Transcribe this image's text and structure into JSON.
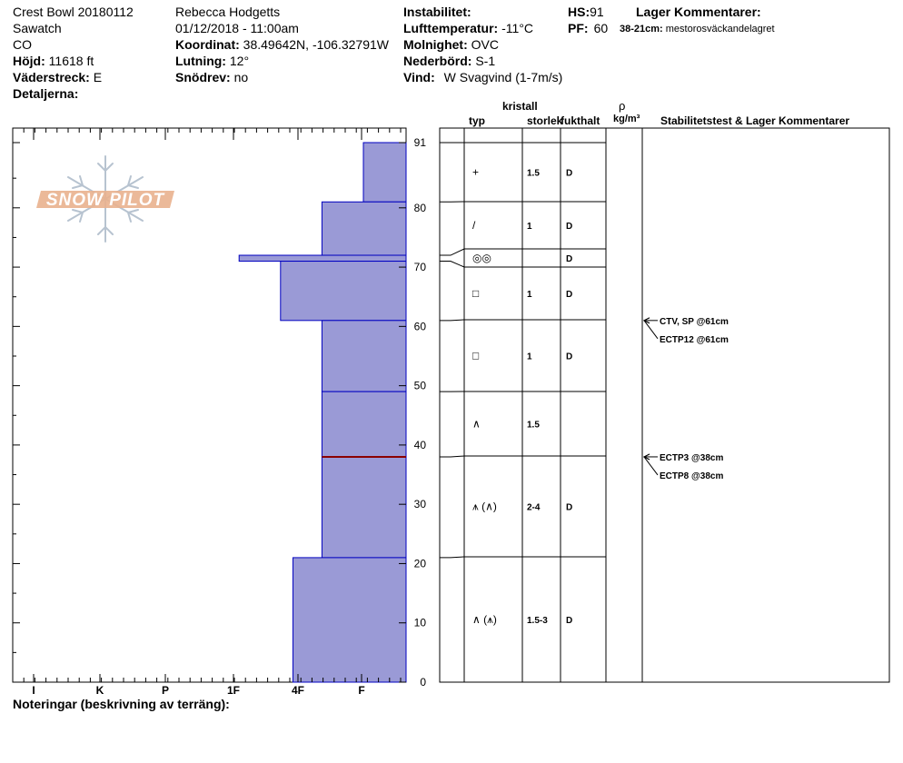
{
  "header": {
    "col1": {
      "title": "Crest Bowl 20180112",
      "range": "Sawatch",
      "state": "CO",
      "elevation_label": "Höjd:",
      "elevation_value": "11618 ft",
      "aspect_label": "Väderstreck:",
      "aspect_value": "E",
      "details_label": "Detaljerna:"
    },
    "col2": {
      "observer": "Rebecca Hodgetts",
      "datetime": "01/12/2018 - 11:00am",
      "coord_label": "Koordinat:",
      "coord_value": "38.49642N, -106.32791W",
      "slope_label": "Lutning:",
      "slope_value": "12°",
      "drift_label": "Snödrev:",
      "drift_value": "no"
    },
    "col3": {
      "instability_label": "Instabilitet:",
      "airtemp_label": "Lufttemperatur:",
      "airtemp_value": "-11°C",
      "sky_label": "Molnighet:",
      "sky_value": "OVC",
      "precip_label": "Nederbörd:",
      "precip_value": "S-1",
      "wind_label": "Vind:",
      "wind_value": "W Svagvind (1-7m/s)"
    },
    "col4": {
      "hs_label": "HS:",
      "hs_value": "91",
      "pf_label": "PF:",
      "pf_value": "60",
      "layer_comments_label": "Lager Kommentarer:",
      "layer_comment_range": "38-21cm:",
      "layer_comment_text": "mestorosväckandelagret"
    }
  },
  "footer": {
    "notes_label": "Noteringar (beskrivning av terräng):"
  },
  "logo": {
    "text": "SNOW PILOT"
  },
  "table_headers": {
    "type": "typ",
    "crystal": "kristall",
    "size": "storlek",
    "moisture": "fukthalt",
    "rho": "ρ",
    "density_unit": "kg/m³",
    "stability": "Stabilitetstest & Lager Kommentarer"
  },
  "colors": {
    "bar_fill": "#9a9ad6",
    "bar_edge": "#0000c0",
    "weak_layer": "#8b0000"
  },
  "chart_data": {
    "type": "bar",
    "orientation": "horizontal",
    "y_axis": {
      "min": 0,
      "max": 91,
      "ticks": [
        0,
        10,
        20,
        30,
        40,
        50,
        60,
        70,
        80,
        91
      ]
    },
    "x_axis": {
      "categories": [
        "I",
        "K",
        "P",
        "1F",
        "4F",
        "F"
      ]
    },
    "hand_hardness_scale": {
      "F": 1,
      "4F": 2,
      "1F": 3,
      "P": 4,
      "K": 5,
      "I": 6
    },
    "layers": [
      {
        "top": 91,
        "bottom": 81,
        "hardness": "F",
        "hardness_index": 1,
        "grain_type": "+",
        "size": "1.5",
        "moisture": "D"
      },
      {
        "top": 81,
        "bottom": 72,
        "hardness": "4F",
        "hardness_index": 2,
        "grain_type": "/",
        "size": "1",
        "moisture": "D"
      },
      {
        "top": 72,
        "bottom": 71,
        "hardness": "P",
        "hardness_index": 4,
        "grain_type": "◎◎",
        "size": "",
        "moisture": "D"
      },
      {
        "top": 71,
        "bottom": 61,
        "hardness": "1F",
        "hardness_index": 3,
        "grain_type": "□",
        "size": "1",
        "moisture": "D"
      },
      {
        "top": 61,
        "bottom": 49,
        "hardness": "4F",
        "hardness_index": 2,
        "grain_type": "□",
        "size": "1",
        "moisture": "D"
      },
      {
        "top": 49,
        "bottom": 38,
        "hardness": "4F",
        "hardness_index": 2,
        "grain_type": "∧",
        "size": "1.5",
        "moisture": ""
      },
      {
        "top": 38,
        "bottom": 21,
        "hardness": "4F",
        "hardness_index": 2,
        "grain_type": "⩚ (∧)",
        "size": "2-4",
        "moisture": "D"
      },
      {
        "top": 21,
        "bottom": 0,
        "hardness": "1F-4F",
        "hardness_index": 2.7,
        "grain_type": "∧ (⩚)",
        "size": "1.5-3",
        "moisture": "D"
      }
    ],
    "weak_layer_depth": 38,
    "stability_tests": [
      {
        "text": "CTV, SP @61cm",
        "depth": 61
      },
      {
        "text": "ECTP12 @61cm",
        "depth": 61
      },
      {
        "text": "ECTP3 @38cm",
        "depth": 38
      },
      {
        "text": "ECTP8 @38cm",
        "depth": 38
      }
    ]
  }
}
